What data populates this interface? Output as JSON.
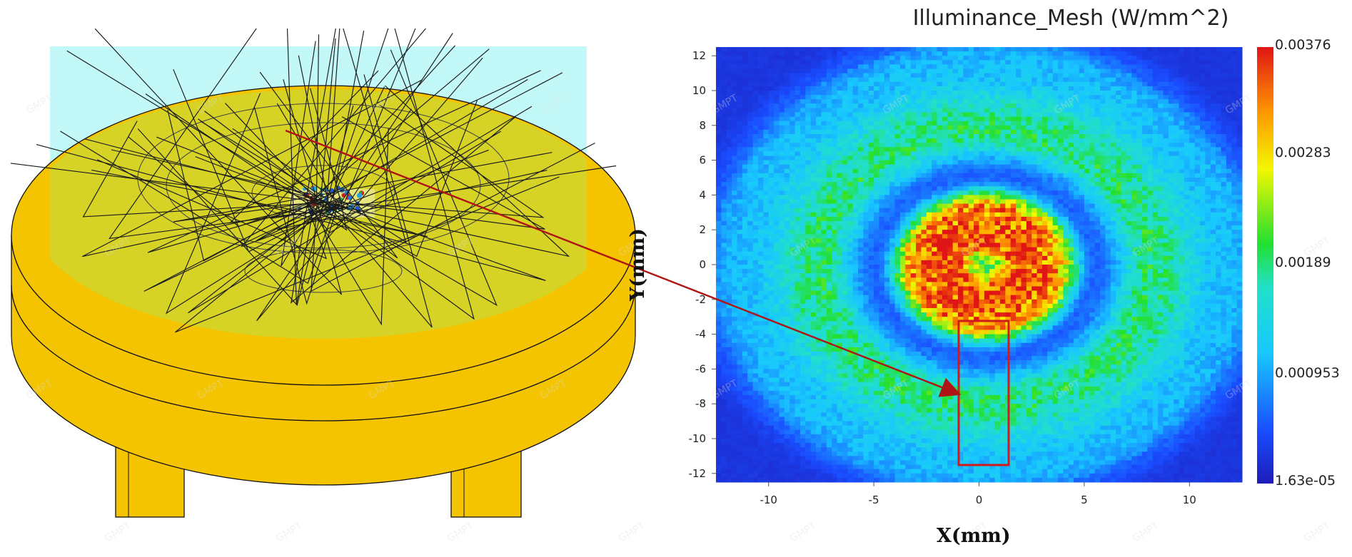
{
  "chart_data": {
    "type": "heatmap",
    "title": "Illuminance_Mesh (W/mm^2)",
    "xlabel": "X(mm)",
    "ylabel": "Y(mm)",
    "x_ticks": [
      -10,
      -5,
      0,
      5,
      10
    ],
    "y_ticks": [
      12,
      10,
      8,
      6,
      4,
      2,
      0,
      -2,
      -4,
      -6,
      -8,
      -10,
      -12
    ],
    "xlim": [
      -12.5,
      12.5
    ],
    "ylim": [
      -12.5,
      12.5
    ],
    "colorbar": {
      "labels": [
        "0.00376",
        "0.00283",
        "0.00189",
        "0.000953",
        "1.63e-05"
      ],
      "values": [
        0.00376,
        0.00283,
        0.00189,
        0.000953,
        1.63e-05
      ],
      "colormap": "jet"
    },
    "rings": [
      {
        "feature": "center",
        "r_mm": 0,
        "value": 0.0021
      },
      {
        "feature": "inner_hot_ring",
        "r_mm": 1.6,
        "value": 0.0036
      },
      {
        "feature": "outer_hot_ring",
        "r_mm": 3.2,
        "value": 0.0033
      },
      {
        "feature": "dark_gap",
        "r_mm": 5.2,
        "value": 0.0006
      },
      {
        "feature": "green_ring",
        "r_mm": 7.8,
        "value": 0.0019
      },
      {
        "feature": "cyan_halo",
        "r_mm": 11.5,
        "value": 0.0011
      },
      {
        "feature": "background",
        "r_mm": 15,
        "value": 0.0003
      }
    ],
    "highlight_box": {
      "x_range_mm": [
        -0.6,
        1.6
      ],
      "y_range_mm": [
        -11.5,
        -3.2
      ],
      "color": "#d11a1a"
    }
  },
  "colors": {
    "lamp_body": "#f5c400",
    "lens_overlay": "#d6d326",
    "background_box": "#c3f8f8",
    "arrow": "#b01414"
  },
  "watermark": "GMPT",
  "icons": [
    "lamp-3d-model",
    "ray-trace-lines",
    "annotation-arrow"
  ]
}
